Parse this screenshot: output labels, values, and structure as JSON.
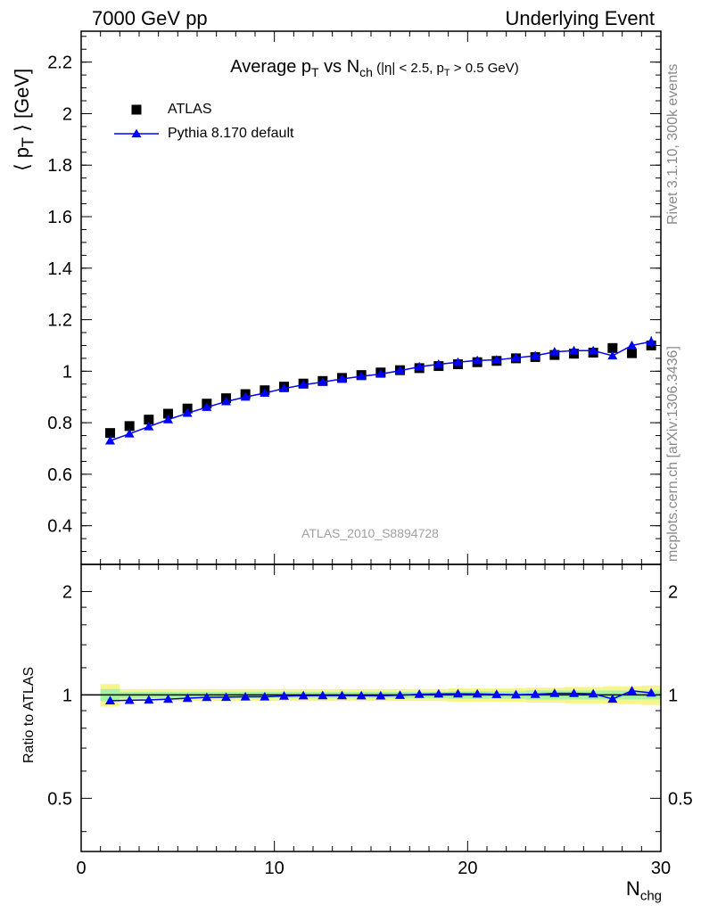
{
  "header": {
    "left": "7000 GeV pp",
    "right": "Underlying Event"
  },
  "side_text": {
    "top": "Rivet 3.1.10,  300k events",
    "bottom": "mcplots.cern.ch [arXiv:1306.3436]"
  },
  "analysis_id": "ATLAS_2010_S8894728",
  "title": {
    "main_a": "Average p",
    "main_sub_a": "T",
    "main_b": " vs N",
    "main_sub_b": "ch",
    "cond_a": " (|η| < 2.5, p",
    "cond_sub": "T",
    "cond_b": " > 0.5 GeV)"
  },
  "legend": {
    "atlas": "ATLAS",
    "pythia": "Pythia 8.170 default"
  },
  "axes": {
    "top_ylabel": "⟨ p_T ⟩ [GeV]",
    "top_ylabel_main": "⟨ p",
    "top_ylabel_sub": "T",
    "top_ylabel_end": " ⟩ [GeV]",
    "bottom_ylabel": "Ratio to ATLAS",
    "xlabel_main": "N",
    "xlabel_sub": "chg"
  },
  "colors": {
    "data": "#000000",
    "mc": "#0000ff",
    "band_inner": "#a6f2a6",
    "band_outer": "#f5f58c"
  },
  "chart_data": [
    {
      "type": "scatter",
      "panel": "main",
      "xlim": [
        0,
        30
      ],
      "ylim": [
        0.25,
        2.32
      ],
      "yticks": [
        0.4,
        0.6,
        0.8,
        1,
        1.2,
        1.4,
        1.6,
        1.8,
        2,
        2.2
      ],
      "ytick_labels": [
        "0.4",
        "0.6",
        "0.8",
        "1",
        "1.2",
        "1.4",
        "1.6",
        "1.8",
        "2",
        "2.2"
      ],
      "x": [
        1.5,
        2.5,
        3.5,
        4.5,
        5.5,
        6.5,
        7.5,
        8.5,
        9.5,
        10.5,
        11.5,
        12.5,
        13.5,
        14.5,
        15.5,
        16.5,
        17.5,
        18.5,
        19.5,
        20.5,
        21.5,
        22.5,
        23.5,
        24.5,
        25.5,
        26.5,
        27.5,
        28.5,
        29.5
      ],
      "series": [
        {
          "name": "ATLAS",
          "marker": "square",
          "values": [
            0.76,
            0.787,
            0.812,
            0.835,
            0.855,
            0.874,
            0.895,
            0.911,
            0.926,
            0.94,
            0.952,
            0.962,
            0.974,
            0.985,
            0.995,
            1.004,
            1.012,
            1.02,
            1.027,
            1.035,
            1.04,
            1.05,
            1.055,
            1.063,
            1.068,
            1.072,
            1.09,
            1.07,
            1.1
          ]
        },
        {
          "name": "Pythia 8.170 default",
          "marker": "triangle",
          "values": [
            0.73,
            0.757,
            0.785,
            0.812,
            0.837,
            0.86,
            0.882,
            0.9,
            0.915,
            0.933,
            0.947,
            0.958,
            0.97,
            0.98,
            0.989,
            1.002,
            1.017,
            1.027,
            1.035,
            1.042,
            1.044,
            1.052,
            1.06,
            1.075,
            1.08,
            1.08,
            1.06,
            1.1,
            1.115
          ],
          "errors": [
            0,
            0,
            0,
            0,
            0,
            0,
            0,
            0,
            0,
            0,
            0,
            0,
            0,
            0,
            0,
            0,
            0,
            0,
            0,
            0,
            0,
            0,
            0,
            0,
            0,
            0,
            0.01,
            0.015,
            0.02
          ]
        }
      ]
    },
    {
      "type": "scatter",
      "panel": "ratio",
      "xlim": [
        0,
        30
      ],
      "ylim": [
        0.35,
        2.4
      ],
      "log_y": true,
      "yticks": [
        0.5,
        1,
        2
      ],
      "ytick_labels": [
        "0.5",
        "1",
        "2"
      ],
      "xticks": [
        0,
        10,
        20,
        30
      ],
      "xtick_labels": [
        "0",
        "10",
        "20",
        "30"
      ],
      "x": [
        1.5,
        2.5,
        3.5,
        4.5,
        5.5,
        6.5,
        7.5,
        8.5,
        9.5,
        10.5,
        11.5,
        12.5,
        13.5,
        14.5,
        15.5,
        16.5,
        17.5,
        18.5,
        19.5,
        20.5,
        21.5,
        22.5,
        23.5,
        24.5,
        25.5,
        26.5,
        27.5,
        28.5,
        29.5
      ],
      "band_inner_halfwidth": [
        0.04,
        0.02,
        0.02,
        0.02,
        0.02,
        0.02,
        0.02,
        0.02,
        0.02,
        0.02,
        0.02,
        0.02,
        0.02,
        0.02,
        0.02,
        0.02,
        0.02,
        0.02,
        0.025,
        0.025,
        0.025,
        0.025,
        0.03,
        0.03,
        0.03,
        0.03,
        0.03,
        0.03,
        0.03
      ],
      "band_outer_halfwidth": [
        0.075,
        0.04,
        0.04,
        0.04,
        0.04,
        0.04,
        0.04,
        0.04,
        0.04,
        0.04,
        0.04,
        0.04,
        0.04,
        0.04,
        0.04,
        0.04,
        0.04,
        0.04,
        0.045,
        0.045,
        0.045,
        0.045,
        0.05,
        0.05,
        0.055,
        0.055,
        0.06,
        0.06,
        0.065
      ],
      "series": [
        {
          "name": "Pythia 8.170 default",
          "marker": "triangle",
          "values": [
            0.962,
            0.965,
            0.967,
            0.972,
            0.978,
            0.984,
            0.985,
            0.988,
            0.988,
            0.993,
            0.995,
            0.996,
            0.996,
            0.995,
            0.994,
            0.998,
            1.005,
            1.007,
            1.008,
            1.007,
            1.004,
            1.002,
            1.005,
            1.011,
            1.011,
            1.008,
            0.973,
            1.028,
            1.014
          ]
        }
      ]
    }
  ]
}
